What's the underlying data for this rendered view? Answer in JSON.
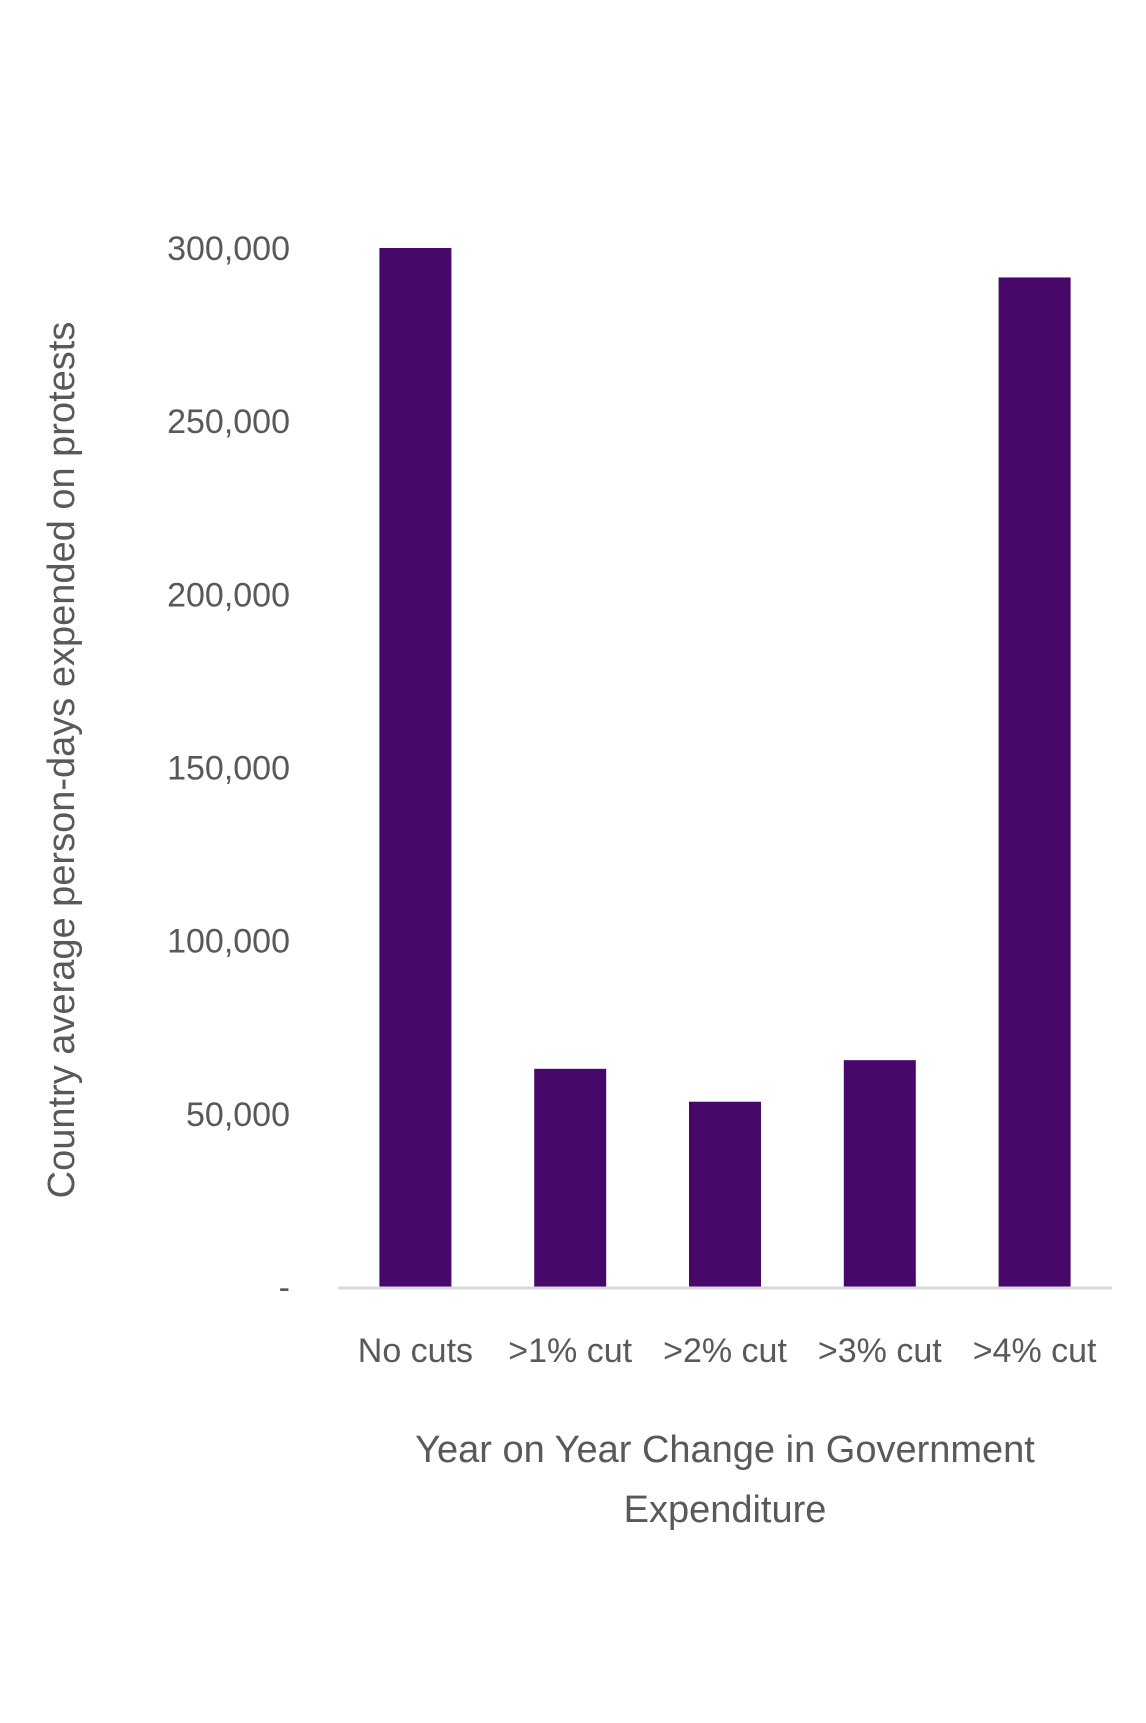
{
  "chart_data": {
    "type": "bar",
    "categories": [
      "No cuts",
      ">1% cut",
      ">2% cut",
      ">3% cut",
      ">4% cut"
    ],
    "series": [
      {
        "values": [
          300000,
          63000,
          53500,
          65500,
          291500
        ]
      }
    ],
    "title": "",
    "xlabel": "Year on Year Change in Government Expenditure",
    "xlabel_lines": [
      "Year on Year Change in Government",
      "Expenditure"
    ],
    "ylabel": "Country average person-days expended on protests",
    "ylim": [
      0,
      300000
    ],
    "y_ticks": [
      {
        "value": 0,
        "label": "-"
      },
      {
        "value": 50000,
        "label": "50,000"
      },
      {
        "value": 100000,
        "label": "100,000"
      },
      {
        "value": 150000,
        "label": "150,000"
      },
      {
        "value": 200000,
        "label": "200,000"
      },
      {
        "value": 250000,
        "label": "250,000"
      },
      {
        "value": 300000,
        "label": "300,000"
      }
    ],
    "grid": false,
    "legend": "none",
    "colors": {
      "bar": "#48086A",
      "axis": "#D9D9D9",
      "text": "#595959"
    }
  }
}
